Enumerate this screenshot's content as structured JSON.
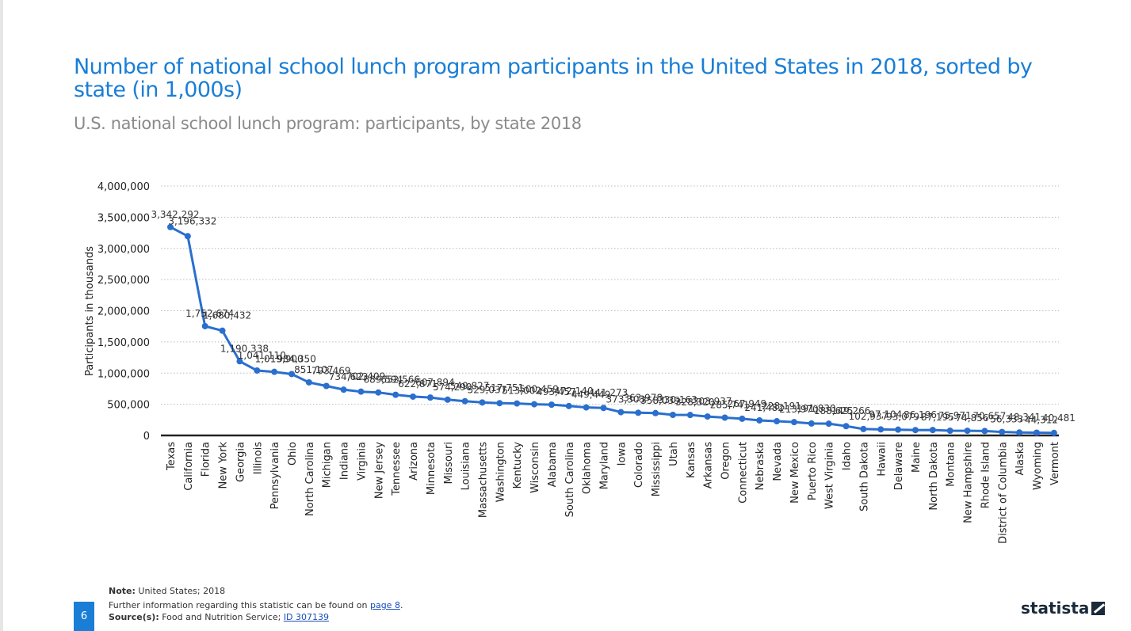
{
  "title": "Number of national school lunch program participants in the United States in 2018, sorted by state (in 1,000s)",
  "subtitle": "U.S. national school lunch program: participants, by state 2018",
  "footer": {
    "note_label": "Note:",
    "note_text": "United States; 2018",
    "further_info_text": "Further information regarding this statistic can be found on",
    "further_info_link": "page 8",
    "source_label": "Source(s):",
    "source_text": "Food and Nutrition Service;",
    "source_link": "ID 307139"
  },
  "page_number": "6",
  "brand": "statista",
  "colors": {
    "accent": "#1a7ed6",
    "line": "#2a6fce",
    "grid": "#bbbbbb"
  },
  "chart_data": {
    "type": "line",
    "title": "Number of national school lunch program participants in the United States in 2018, sorted by state (in 1,000s)",
    "xlabel": "",
    "ylabel": "Participants in thousands",
    "ylim": [
      0,
      4000000
    ],
    "yticks": [
      "0",
      "500,000",
      "1,000,000",
      "1,500,000",
      "2,000,000",
      "2,500,000",
      "3,000,000",
      "3,500,000",
      "4,000,000"
    ],
    "grid": true,
    "categories": [
      "Texas",
      "California",
      "Florida",
      "New York",
      "Georgia",
      "Illinois",
      "Pennsylvania",
      "Ohio",
      "North Carolina",
      "Michigan",
      "Indiana",
      "Virginia",
      "New Jersey",
      "Tennessee",
      "Arizona",
      "Minnesota",
      "Missouri",
      "Louisiana",
      "Massachusetts",
      "Washington",
      "Kentucky",
      "Wisconsin",
      "Alabama",
      "South Carolina",
      "Oklahoma",
      "Maryland",
      "Iowa",
      "Colorado",
      "Mississippi",
      "Utah",
      "Kansas",
      "Arkansas",
      "Oregon",
      "Connecticut",
      "Nebraska",
      "Nevada",
      "New Mexico",
      "Puerto Rico",
      "West Virginia",
      "Idaho",
      "South Dakota",
      "Hawaii",
      "Delaware",
      "Maine",
      "North Dakota",
      "Montana",
      "New Hampshire",
      "Rhode Island",
      "District of Columbia",
      "Alaska",
      "Wyoming",
      "Vermont"
    ],
    "values": [
      3342292,
      3196332,
      1752674,
      1680432,
      1190338,
      1041110,
      1019900,
      984350,
      851107,
      793469,
      734623,
      702409,
      689594,
      652566,
      622871,
      607894,
      574290,
      549827,
      529037,
      517751,
      513002,
      500459,
      493457,
      472140,
      449449,
      441273,
      373303,
      363978,
      358039,
      330163,
      328320,
      303937,
      285741,
      267949,
      241482,
      228191,
      213970,
      191830,
      188625,
      149266,
      102937,
      97104,
      93079,
      86196,
      87195,
      75971,
      74856,
      70657,
      56333,
      48341,
      44312,
      40481
    ],
    "value_labels": [
      "3,342,292",
      "3,196,332",
      "1,752,674",
      "1,680,432",
      "1,190,338",
      "1,041,110",
      "1,019,900",
      "984,350",
      "851,107",
      "793,469",
      "734,623",
      "702,409",
      "689,594",
      "652,566",
      "622,871",
      "607,894",
      "574,290",
      "549,827",
      "529,037",
      "517,751",
      "513,002",
      "500,459",
      "493,457",
      "472,140",
      "449,449",
      "441,273",
      "373,303",
      "363,978",
      "358,039",
      "330,163",
      "328,320",
      "303,937",
      "285,741",
      "267,949",
      "241,482",
      "228,191",
      "213,970",
      "191,830",
      "188,625",
      "149,266",
      "102,937",
      "97,104",
      "93,079",
      "86,196",
      "87,195",
      "75,971",
      "74,856",
      "70,657",
      "56,333",
      "48,341",
      "44,312",
      "40,481"
    ]
  }
}
